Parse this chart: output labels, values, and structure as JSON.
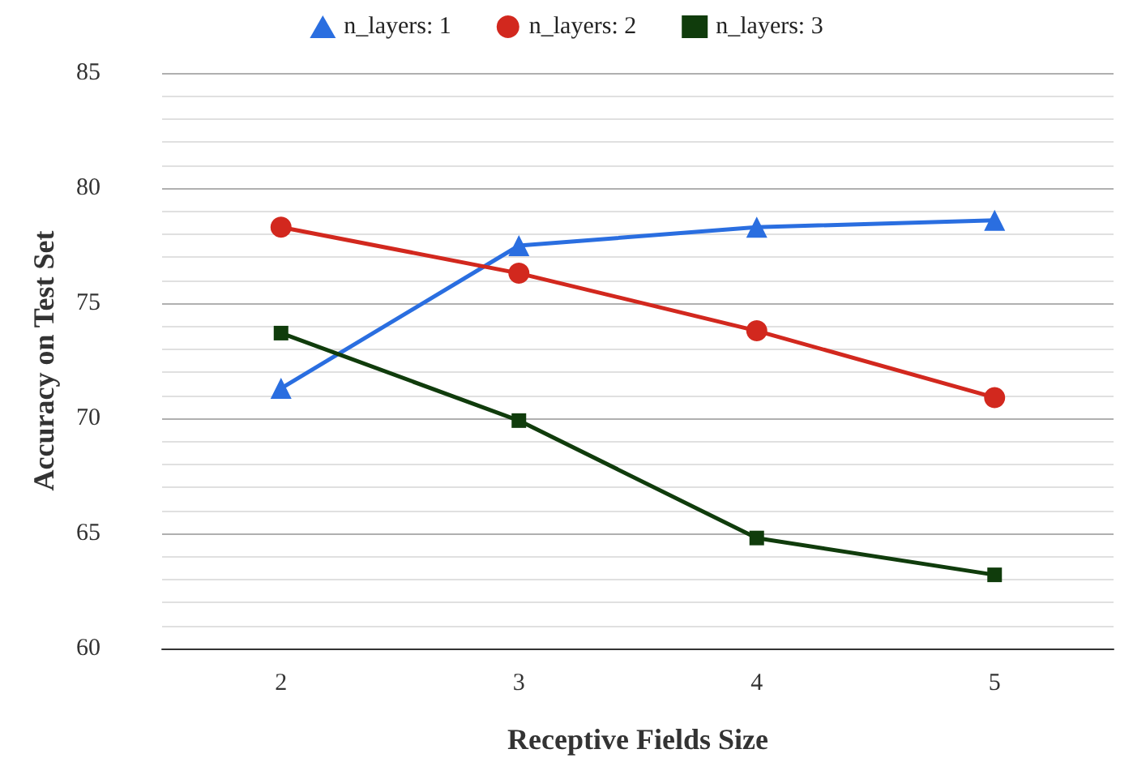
{
  "chart_data": {
    "type": "line",
    "xlabel": "Receptive Fields Size",
    "ylabel": "Accuracy on Test Set",
    "categories": [
      "2",
      "3",
      "4",
      "5"
    ],
    "series": [
      {
        "name": "n_layers: 1",
        "color": "#2a6ee0",
        "marker": "triangle",
        "values": [
          71.3,
          77.5,
          78.3,
          78.6
        ]
      },
      {
        "name": "n_layers: 2",
        "color": "#d2281e",
        "marker": "circle",
        "values": [
          78.3,
          76.3,
          73.8,
          70.9
        ]
      },
      {
        "name": "n_layers: 3",
        "color": "#103c0c",
        "marker": "square",
        "values": [
          73.7,
          69.9,
          64.8,
          63.2
        ]
      }
    ],
    "ylim": [
      60,
      85
    ],
    "yticks": [
      60,
      {
        "value": 61,
        "label": null
      },
      {
        "value": 62,
        "label": null
      },
      {
        "value": 63,
        "label": null
      },
      {
        "value": 64,
        "label": null
      },
      65,
      {
        "value": 66,
        "label": null
      },
      {
        "value": 67,
        "label": null
      },
      {
        "value": 68,
        "label": null
      },
      {
        "value": 69,
        "label": null
      },
      70,
      {
        "value": 71,
        "label": null
      },
      {
        "value": 72,
        "label": null
      },
      {
        "value": 73,
        "label": null
      },
      {
        "value": 74,
        "label": null
      },
      75,
      {
        "value": 76,
        "label": null
      },
      {
        "value": 77,
        "label": null
      },
      {
        "value": 78,
        "label": null
      },
      {
        "value": 79,
        "label": null
      },
      80,
      {
        "value": 81,
        "label": null
      },
      {
        "value": 82,
        "label": null
      },
      {
        "value": 83,
        "label": null
      },
      {
        "value": 84,
        "label": null
      },
      85
    ],
    "grid": "y",
    "legend": "top"
  }
}
